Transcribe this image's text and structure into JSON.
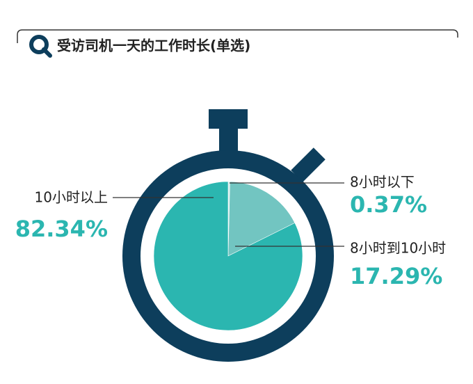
{
  "chart_data": {
    "type": "pie",
    "title": "受访司机一天的工作时长(单选)",
    "categories": [
      "8小时以下",
      "8小时到10小时",
      "10小时以上"
    ],
    "values": [
      0.37,
      17.29,
      82.34
    ],
    "value_labels": [
      "0.37%",
      "17.29%",
      "82.34%"
    ],
    "colors": [
      "#d6eeec",
      "#72c5c1",
      "#2bb6b0"
    ]
  }
}
